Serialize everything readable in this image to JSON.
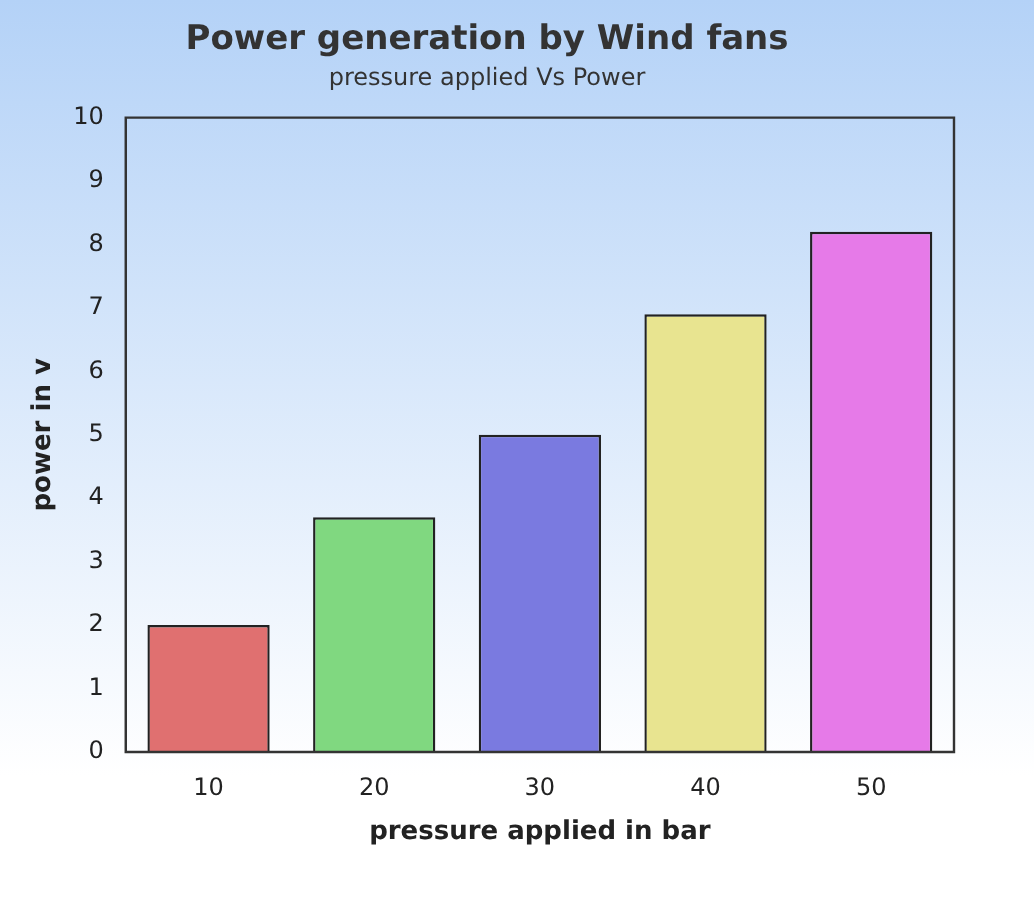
{
  "chart_data": {
    "type": "bar",
    "title": "Power generation by Wind fans",
    "subtitle": "pressure applied Vs Power",
    "xlabel": "pressure applied in bar",
    "ylabel": "power in v",
    "categories": [
      "10",
      "20",
      "30",
      "40",
      "50"
    ],
    "values": [
      2.0,
      3.7,
      5.0,
      6.9,
      8.2
    ],
    "colors": [
      "#e07070",
      "#80d880",
      "#7a7ae0",
      "#e8e490",
      "#e67ae8"
    ],
    "ylim": [
      0,
      10
    ],
    "yticks": [
      0,
      1,
      2,
      3,
      4,
      5,
      6,
      7,
      8,
      9,
      10
    ],
    "grid": false,
    "legend": false
  }
}
